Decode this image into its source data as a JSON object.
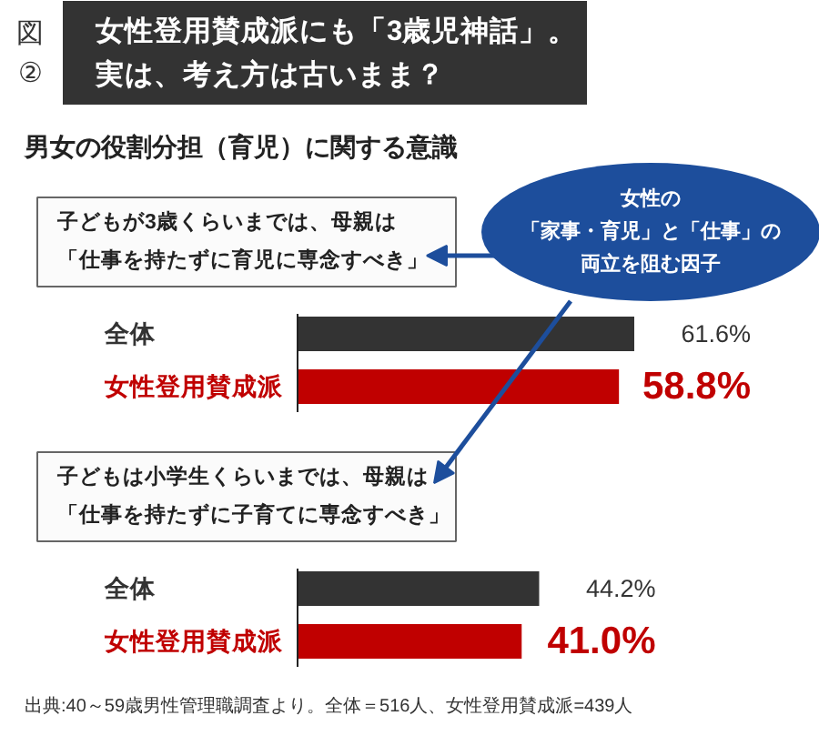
{
  "chart_data": [
    {
      "type": "other",
      "title": "女性登用賛成派にも「3歳児神話」。実は、考え方は古いまま？",
      "subtitle": "男女の役割分担（育児）に関する意識",
      "annotations": [
        "図\n②"
      ]
    },
    {
      "type": "bar",
      "orientation": "horizontal",
      "title": "子どもが3歳くらいまでは、母親は「仕事を持たずに育児に専念すべき」",
      "categories": [
        "全体",
        "女性登用賛成派"
      ],
      "values": [
        61.6,
        58.8
      ],
      "colors": [
        "#333333",
        "#c00000"
      ],
      "value_labels": [
        "61.6%",
        "58.8%"
      ],
      "annotations": [
        "女性の「家事・育児」と「仕事」の両立を阻む因子"
      ]
    },
    {
      "type": "bar",
      "orientation": "horizontal",
      "title": "子どもは小学生くらいまでは、母親は「仕事を持たずに子育てに専念すべき」",
      "categories": [
        "全体",
        "女性登用賛成派"
      ],
      "values": [
        44.2,
        41.0
      ],
      "colors": [
        "#333333",
        "#c00000"
      ],
      "value_labels": [
        "44.2%",
        "41.0%"
      ],
      "annotations": [
        "出典:40～59歳男性管理職調査より。全体＝516人、女性登用賛成派=439人"
      ]
    }
  ]
}
